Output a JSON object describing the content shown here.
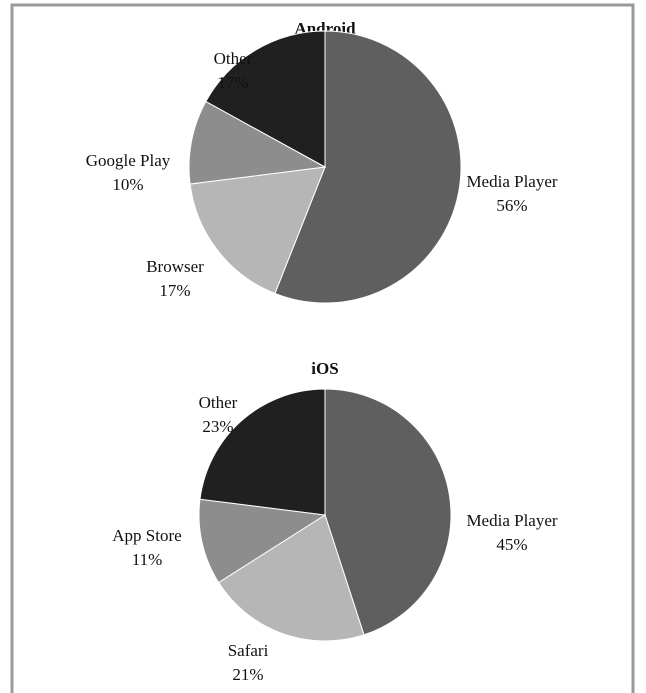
{
  "chart_data": [
    {
      "type": "pie",
      "title": "Android",
      "categories": [
        "Media Player",
        "Browser",
        "Google Play",
        "Other"
      ],
      "values": [
        56,
        17,
        10,
        17
      ],
      "value_labels": [
        "56%",
        "17%",
        "10%",
        "17%"
      ],
      "colors": [
        "#5f5f5f",
        "#b6b6b6",
        "#8d8d8d",
        "#202020"
      ]
    },
    {
      "type": "pie",
      "title": "iOS",
      "categories": [
        "Media Player",
        "Safari",
        "App Store",
        "Other"
      ],
      "values": [
        45,
        21,
        11,
        23
      ],
      "value_labels": [
        "45%",
        "21%",
        "11%",
        "23%"
      ],
      "colors": [
        "#5f5f5f",
        "#b6b6b6",
        "#8d8d8d",
        "#202020"
      ]
    }
  ]
}
